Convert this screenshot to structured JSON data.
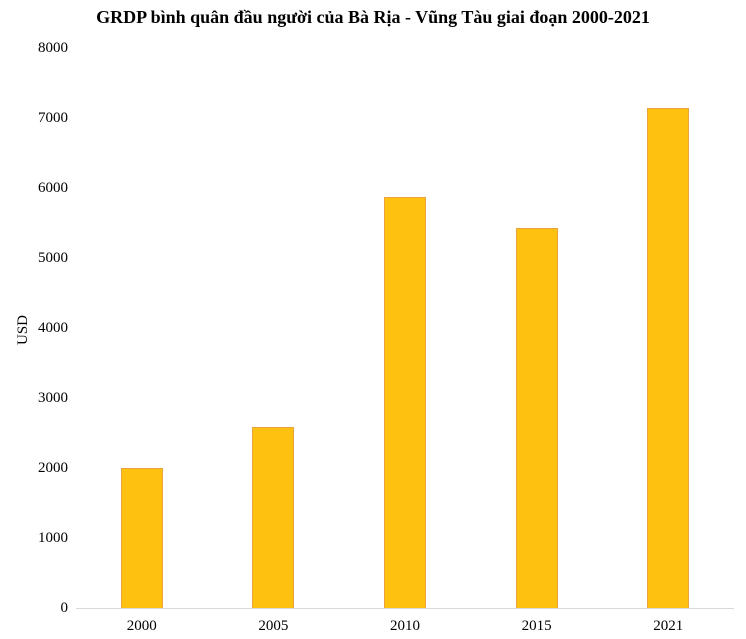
{
  "chart_data": {
    "type": "bar",
    "title": "GRDP bình quân đầu người của Bà Rịa - Vũng Tàu giai đoạn 2000-2021",
    "categories": [
      "2000",
      "2005",
      "2010",
      "2015",
      "2021"
    ],
    "values": [
      2000,
      2580,
      5870,
      5430,
      7140
    ],
    "xlabel": "",
    "ylabel": "USD",
    "ylim": [
      0,
      8000
    ],
    "ytick_step": 1000,
    "grid": false,
    "legend_position": "none",
    "colors": {
      "bar_fill": "#FFC110",
      "bar_border": "#E8A33D",
      "axis_line": "#D9D9D9",
      "text": "#000000",
      "background": "#FFFFFF"
    }
  }
}
